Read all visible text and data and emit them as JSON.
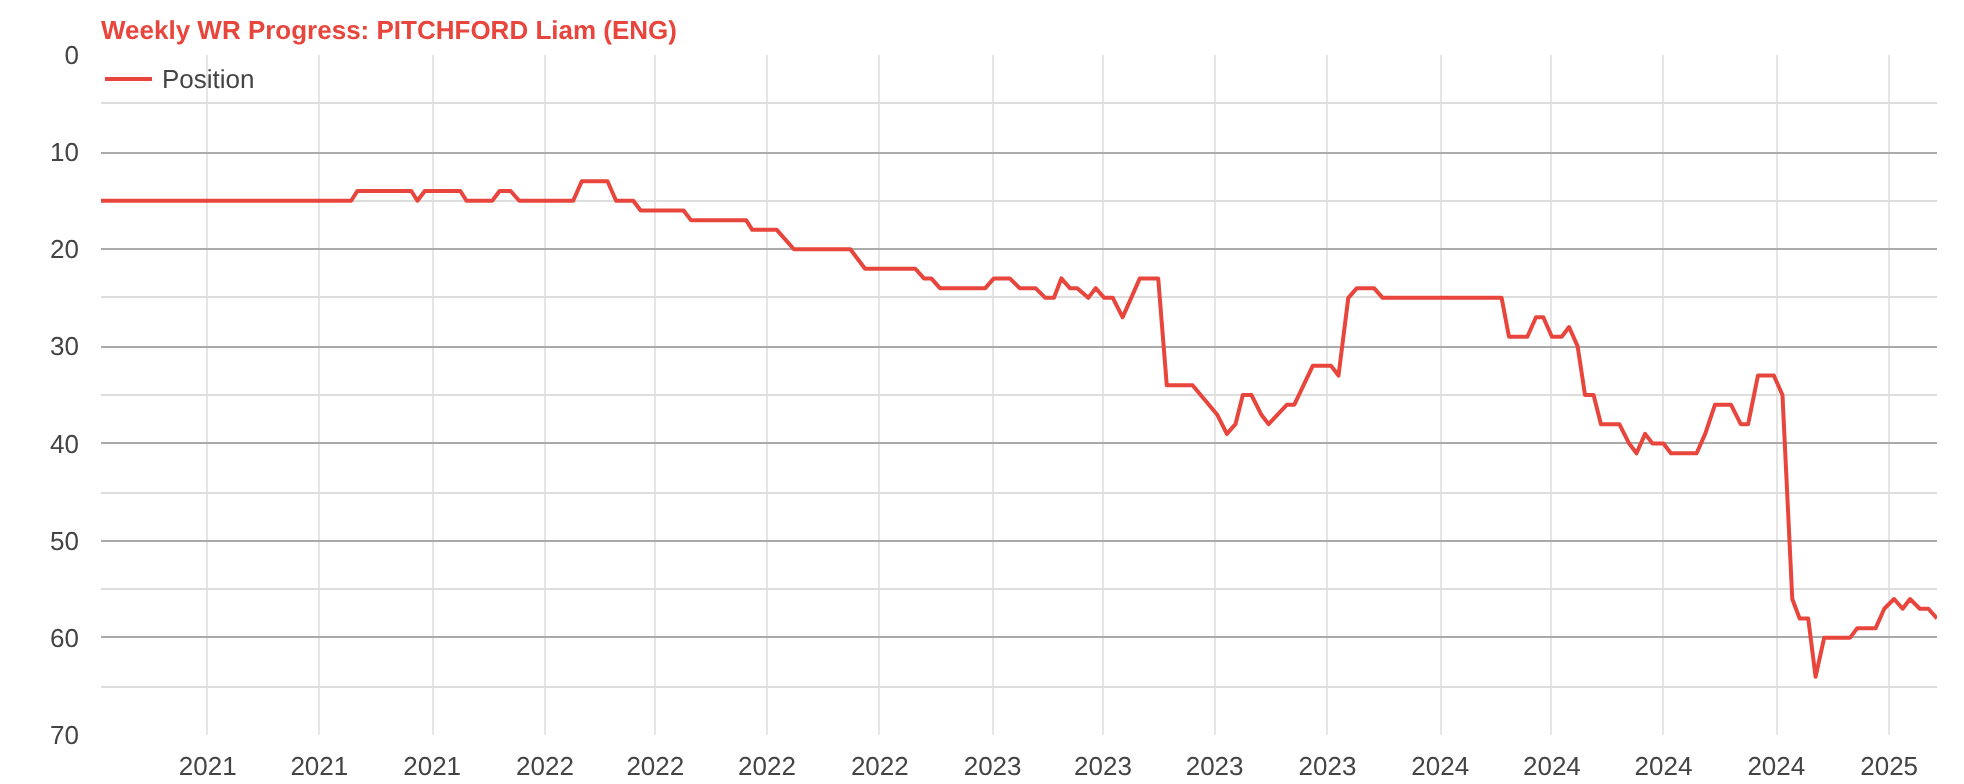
{
  "chart_data": {
    "type": "line",
    "title": "Weekly WR Progress: PITCHFORD Liam (ENG)",
    "x": [
      "2021-01-04",
      "2021-07-27",
      "2021-08-01",
      "2021-09-14",
      "2021-09-19",
      "2021-09-25",
      "2021-10-24",
      "2021-10-29",
      "2021-11-19",
      "2021-11-25",
      "2021-12-04",
      "2021-12-11",
      "2022-01-24",
      "2022-01-31",
      "2022-02-21",
      "2022-02-28",
      "2022-03-14",
      "2022-03-20",
      "2022-04-24",
      "2022-04-30",
      "2022-06-14",
      "2022-06-19",
      "2022-07-09",
      "2022-07-23",
      "2022-09-07",
      "2022-09-19",
      "2022-10-30",
      "2022-11-06",
      "2022-11-12",
      "2022-11-19",
      "2022-12-26",
      "2023-01-02",
      "2023-01-15",
      "2023-01-23",
      "2023-02-05",
      "2023-02-13",
      "2023-02-20",
      "2023-02-26",
      "2023-03-05",
      "2023-03-11",
      "2023-03-20",
      "2023-03-26",
      "2023-04-02",
      "2023-04-09",
      "2023-04-17",
      "2023-05-01",
      "2023-05-16",
      "2023-05-23",
      "2023-06-13",
      "2023-07-03",
      "2023-07-11",
      "2023-07-18",
      "2023-07-24",
      "2023-07-31",
      "2023-08-08",
      "2023-08-14",
      "2023-08-29",
      "2023-09-04",
      "2023-09-19",
      "2023-10-04",
      "2023-10-10",
      "2023-10-18",
      "2023-10-25",
      "2023-11-08",
      "2023-11-15",
      "2024-02-20",
      "2024-02-26",
      "2024-03-12",
      "2024-03-19",
      "2024-03-25",
      "2024-04-01",
      "2024-04-09",
      "2024-04-15",
      "2024-04-22",
      "2024-04-28",
      "2024-05-05",
      "2024-05-11",
      "2024-05-26",
      "2024-06-03",
      "2024-06-09",
      "2024-06-16",
      "2024-06-22",
      "2024-07-01",
      "2024-07-07",
      "2024-07-28",
      "2024-08-04",
      "2024-08-12",
      "2024-08-25",
      "2024-09-02",
      "2024-09-08",
      "2024-09-16",
      "2024-09-29",
      "2024-10-06",
      "2024-10-14",
      "2024-10-20",
      "2024-10-27",
      "2024-11-02",
      "2024-11-09",
      "2024-11-30",
      "2024-12-06",
      "2024-12-21",
      "2024-12-28",
      "2025-01-05",
      "2025-01-12",
      "2025-01-18",
      "2025-01-26",
      "2025-02-02",
      "2025-02-09"
    ],
    "series": [
      {
        "name": "Position",
        "color": "#e8453c",
        "values": [
          15,
          15,
          14,
          14,
          15,
          14,
          14,
          15,
          15,
          14,
          14,
          15,
          15,
          13,
          13,
          15,
          15,
          16,
          16,
          17,
          17,
          18,
          18,
          20,
          20,
          22,
          22,
          23,
          23,
          24,
          24,
          23,
          23,
          24,
          24,
          25,
          25,
          23,
          24,
          24,
          25,
          24,
          25,
          25,
          27,
          23,
          23,
          34,
          34,
          37,
          39,
          38,
          35,
          35,
          37,
          38,
          36,
          36,
          32,
          32,
          33,
          25,
          24,
          24,
          25,
          25,
          29,
          29,
          27,
          27,
          29,
          29,
          28,
          30,
          35,
          35,
          38,
          38,
          40,
          41,
          39,
          40,
          40,
          41,
          41,
          39,
          36,
          36,
          38,
          38,
          33,
          33,
          35,
          56,
          58,
          58,
          64,
          60,
          60,
          59,
          59,
          57,
          56,
          57,
          56,
          57,
          57,
          58
        ]
      }
    ],
    "xlim": [
      "2021-01-04",
      "2025-02-09"
    ],
    "xticks": [
      {
        "value": "2021-04-01",
        "label": "2021"
      },
      {
        "value": "2021-07-01",
        "label": "2021"
      },
      {
        "value": "2021-10-01",
        "label": "2021"
      },
      {
        "value": "2022-01-01",
        "label": "2022"
      },
      {
        "value": "2022-04-01",
        "label": "2022"
      },
      {
        "value": "2022-07-01",
        "label": "2022"
      },
      {
        "value": "2022-10-01",
        "label": "2022"
      },
      {
        "value": "2023-01-01",
        "label": "2023"
      },
      {
        "value": "2023-04-01",
        "label": "2023"
      },
      {
        "value": "2023-07-01",
        "label": "2023"
      },
      {
        "value": "2023-10-01",
        "label": "2023"
      },
      {
        "value": "2024-01-01",
        "label": "2024"
      },
      {
        "value": "2024-04-01",
        "label": "2024"
      },
      {
        "value": "2024-07-01",
        "label": "2024"
      },
      {
        "value": "2024-10-01",
        "label": "2024"
      },
      {
        "value": "2025-01-01",
        "label": "2025"
      }
    ],
    "ylim": [
      70,
      0
    ],
    "yticks": [
      0,
      {
        "value": 5,
        "label": null
      },
      10,
      {
        "value": 15,
        "label": null
      },
      20,
      {
        "value": 25,
        "label": null
      },
      30,
      {
        "value": 35,
        "label": null
      },
      40,
      {
        "value": 45,
        "label": null
      },
      50,
      {
        "value": 55,
        "label": null
      },
      60,
      {
        "value": 65,
        "label": null
      },
      70
    ],
    "grid": true,
    "legend": "top left"
  }
}
